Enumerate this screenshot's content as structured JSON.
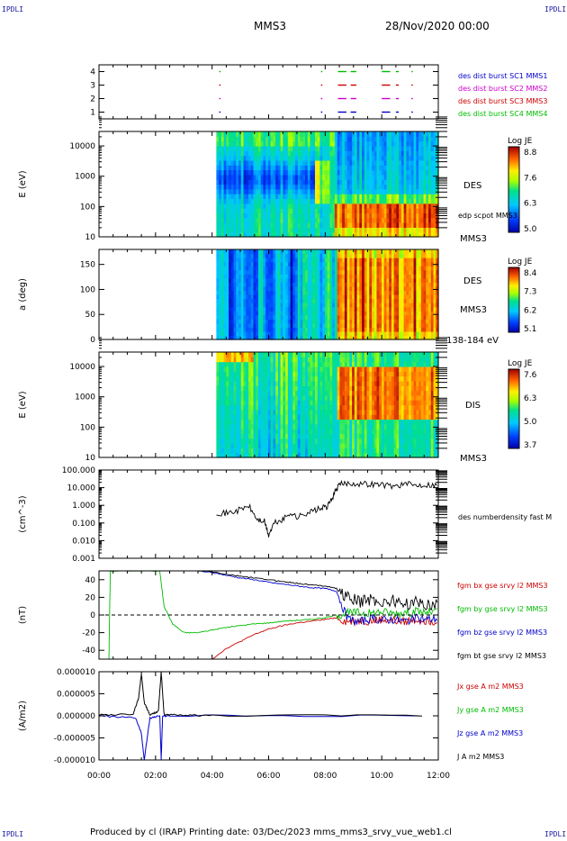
{
  "header": {
    "corner_left_top": "IPDLI",
    "corner_right_top": "IPDLI",
    "corner_left_bottom": "IPDLI",
    "corner_right_bottom": "IPDLI",
    "title": "MMS3",
    "date": "28/Nov/2020 00:00"
  },
  "footer": {
    "text": "Produced by cl (IRAP)   Printing date: 03/Dec/2023   mms_mms3_srvy_vue_web1.cl"
  },
  "chart_data": [
    {
      "type": "scatter",
      "panel": "burst",
      "yticks": [
        "1",
        "2",
        "3",
        "4"
      ],
      "ylim": [
        0.5,
        4.5
      ],
      "legend": [
        {
          "text": "des dist burst SC1 MMS1",
          "color": "#0000cc"
        },
        {
          "text": "des dist burst SC2 MMS2",
          "color": "#cc00cc"
        },
        {
          "text": "des dist burst SC3 MMS3",
          "color": "#cc0000"
        },
        {
          "text": "des dist burst SC4 MMS4",
          "color": "#00bb00"
        }
      ],
      "series": [
        {
          "level": 4,
          "color": "#00bb00",
          "segments": [
            [
              4.25,
              4.3
            ],
            [
              7.85,
              7.9
            ],
            [
              8.45,
              8.75
            ],
            [
              8.9,
              9.1
            ],
            [
              10.0,
              10.3
            ],
            [
              10.5,
              10.6
            ],
            [
              11.05,
              11.1
            ]
          ]
        },
        {
          "level": 3,
          "color": "#cc0000",
          "segments": [
            [
              4.25,
              4.3
            ],
            [
              7.85,
              7.9
            ],
            [
              8.45,
              8.75
            ],
            [
              8.9,
              9.1
            ],
            [
              10.0,
              10.3
            ],
            [
              10.5,
              10.6
            ],
            [
              11.05,
              11.1
            ]
          ]
        },
        {
          "level": 2,
          "color": "#cc00cc",
          "segments": [
            [
              4.25,
              4.3
            ],
            [
              7.85,
              7.9
            ],
            [
              8.45,
              8.75
            ],
            [
              8.9,
              9.1
            ],
            [
              10.0,
              10.3
            ],
            [
              10.5,
              10.6
            ],
            [
              11.05,
              11.1
            ]
          ]
        },
        {
          "level": 1,
          "color": "#0000cc",
          "segments": [
            [
              4.25,
              4.3
            ],
            [
              7.85,
              7.9
            ],
            [
              8.45,
              8.75
            ],
            [
              8.9,
              9.1
            ],
            [
              10.0,
              10.3
            ],
            [
              10.5,
              10.6
            ],
            [
              11.05,
              11.1
            ]
          ]
        }
      ]
    },
    {
      "type": "heatmap",
      "panel": "des_energy",
      "ylabel": "E (eV)",
      "yscale": "log",
      "yticks": [
        "10",
        "100",
        "1000",
        "10000"
      ],
      "right_label": "DES",
      "right_sub": "edp scpot MMS3",
      "right_bottom": "MMS3",
      "colorbar": {
        "title": "Log JE",
        "ticks": [
          "8.8",
          "7.6",
          "6.3",
          "5.0"
        ]
      }
    },
    {
      "type": "heatmap",
      "panel": "des_pitch",
      "ylabel": "a (deg)",
      "yticks": [
        "0",
        "50",
        "100",
        "150"
      ],
      "ylim": [
        0,
        180
      ],
      "right_label": "DES",
      "right_sub": "MMS3",
      "right_bottom": "138-184 eV",
      "colorbar": {
        "title": "Log JE",
        "ticks": [
          "8.4",
          "7.3",
          "6.2",
          "5.1"
        ]
      }
    },
    {
      "type": "heatmap",
      "panel": "dis_energy",
      "ylabel": "E (eV)",
      "yscale": "log",
      "yticks": [
        "10",
        "100",
        "1000",
        "10000"
      ],
      "right_label": "DIS",
      "right_bottom": "MMS3",
      "colorbar": {
        "title": "Log JE",
        "ticks": [
          "7.6",
          "6.3",
          "5.0",
          "3.7"
        ]
      }
    },
    {
      "type": "line",
      "panel": "density",
      "ylabel": "(cm^-3)",
      "yscale": "log",
      "yticks": [
        "0.001",
        "0.010",
        "0.100",
        "1.000",
        "10.000",
        "100.000"
      ],
      "legend": [
        {
          "text": "des numberdensity fast M",
          "color": "#000000"
        }
      ],
      "series": [
        {
          "name": "des numberdensity fast M",
          "color": "#000000",
          "x": [
            4.15,
            4.5,
            4.9,
            5.3,
            5.6,
            5.85,
            6.0,
            6.2,
            6.5,
            6.8,
            7.0,
            7.3,
            7.6,
            7.9,
            8.1,
            8.3,
            8.5,
            8.8,
            9.2,
            9.6,
            10.0,
            10.4,
            10.8,
            11.2,
            11.6,
            12.0
          ],
          "y": [
            0.4,
            0.35,
            0.5,
            0.9,
            0.15,
            0.12,
            0.02,
            0.1,
            0.15,
            0.4,
            0.2,
            0.35,
            0.5,
            0.7,
            0.9,
            4,
            15,
            18,
            17,
            16,
            15,
            12,
            16,
            14,
            15,
            14
          ]
        }
      ]
    },
    {
      "type": "line",
      "panel": "fgm",
      "ylabel": "(nT)",
      "yticks": [
        "-40",
        "-20",
        "0",
        "20",
        "40"
      ],
      "ylim": [
        -50,
        50
      ],
      "legend": [
        {
          "text": "fgm bx gse srvy l2 MMS3",
          "color": "#cc0000"
        },
        {
          "text": "fgm by gse srvy l2 MMS3",
          "color": "#00bb00"
        },
        {
          "text": "fgm bz gse srvy l2 MMS3",
          "color": "#0000cc"
        },
        {
          "text": "fgm bt gse srvy l2 MMS3",
          "color": "#000000"
        }
      ],
      "series": [
        {
          "name": "fgm bx gse srvy l2 MMS3",
          "color": "#cc0000",
          "x": [
            4.0,
            4.5,
            5.0,
            5.5,
            6.0,
            6.5,
            7.0,
            7.5,
            8.0,
            8.4,
            8.8,
            9.2,
            9.6,
            10.0,
            10.4,
            10.8,
            11.2,
            11.6,
            12.0
          ],
          "y": [
            -50,
            -38,
            -30,
            -22,
            -16,
            -12,
            -9,
            -7,
            -5,
            -3,
            -8,
            -6,
            -7,
            -5,
            -6,
            -8,
            -5,
            -6,
            -7
          ]
        },
        {
          "name": "fgm by gse srvy l2 MMS3",
          "color": "#00bb00",
          "x": [
            0.35,
            0.4,
            2.15,
            2.3,
            2.6,
            3.0,
            3.5,
            4.0,
            4.5,
            5.0,
            5.5,
            6.0,
            6.5,
            7.0,
            7.5,
            8.0,
            8.4,
            8.8,
            9.2,
            9.6,
            10.0,
            10.4,
            10.8,
            11.2,
            11.6,
            12.0
          ],
          "y": [
            -50,
            50,
            50,
            10,
            -10,
            -20,
            -20,
            -17,
            -14,
            -12,
            -10,
            -9,
            -7,
            -6,
            -5,
            -3,
            0,
            2,
            3,
            2,
            4,
            2,
            3,
            4,
            3,
            4
          ]
        },
        {
          "name": "fgm bz gse srvy l2 MMS3",
          "color": "#0000cc",
          "x": [
            3.5,
            4.0,
            4.5,
            5.0,
            5.5,
            6.0,
            6.5,
            7.0,
            7.5,
            8.0,
            8.4,
            8.8,
            9.2,
            9.6,
            10.0,
            10.4,
            10.8,
            11.2,
            11.6,
            12.0
          ],
          "y": [
            50,
            48,
            45,
            42,
            40,
            37,
            35,
            33,
            31,
            30,
            27,
            -5,
            -8,
            -4,
            -6,
            -5,
            -7,
            -4,
            -5,
            -4
          ]
        },
        {
          "name": "fgm bt gse srvy l2 MMS3",
          "color": "#000000",
          "x": [
            3.5,
            4.0,
            4.5,
            5.0,
            5.5,
            6.0,
            6.5,
            7.0,
            7.5,
            8.0,
            8.4,
            8.8,
            9.2,
            9.6,
            10.0,
            10.4,
            10.8,
            11.2,
            11.6,
            12.0
          ],
          "y": [
            50,
            49,
            46,
            44,
            42,
            40,
            38,
            36,
            34,
            33,
            30,
            20,
            15,
            18,
            14,
            16,
            12,
            14,
            12,
            13
          ]
        }
      ]
    },
    {
      "type": "line",
      "panel": "current",
      "ylabel": "(A/m2)",
      "yticks": [
        "-0.000010",
        "-0.000005",
        "0.000000",
        "0.000005",
        "0.000010"
      ],
      "ylim": [
        -1e-05,
        1e-05
      ],
      "legend": [
        {
          "text": "Jx gse A m2 MMS3",
          "color": "#cc0000"
        },
        {
          "text": "Jy gse A m2 MMS3",
          "color": "#00bb00"
        },
        {
          "text": "Jz gse A m2 MMS3",
          "color": "#0000cc"
        },
        {
          "text": "J A m2 MMS3",
          "color": "#000000"
        }
      ],
      "series": [
        {
          "name": "J A m2 MMS3",
          "color": "#000000",
          "x": [
            0,
            1.2,
            1.4,
            1.5,
            1.6,
            1.8,
            2.1,
            2.2,
            2.3,
            3.0,
            4.0,
            12.0
          ],
          "y": [
            2e-07,
            3e-07,
            4e-06,
            9.5e-06,
            3e-06,
            2e-07,
            1e-06,
            1e-05,
            3e-07,
            1e-07,
            1e-07,
            1e-07
          ]
        },
        {
          "name": "Jz gse A m2 MMS3",
          "color": "#0000cc",
          "x": [
            0,
            1.3,
            1.5,
            1.6,
            1.8,
            2.15,
            2.2,
            2.25,
            2.5,
            12.0
          ],
          "y": [
            0,
            -5e-07,
            -4e-06,
            -1e-05,
            -5e-07,
            0,
            -1e-05,
            0,
            0,
            0
          ]
        }
      ]
    }
  ],
  "axis": {
    "xticks": [
      "00:00",
      "02:00",
      "04:00",
      "06:00",
      "08:00",
      "10:00",
      "12:00"
    ],
    "xrange_hours": [
      0,
      12
    ]
  }
}
